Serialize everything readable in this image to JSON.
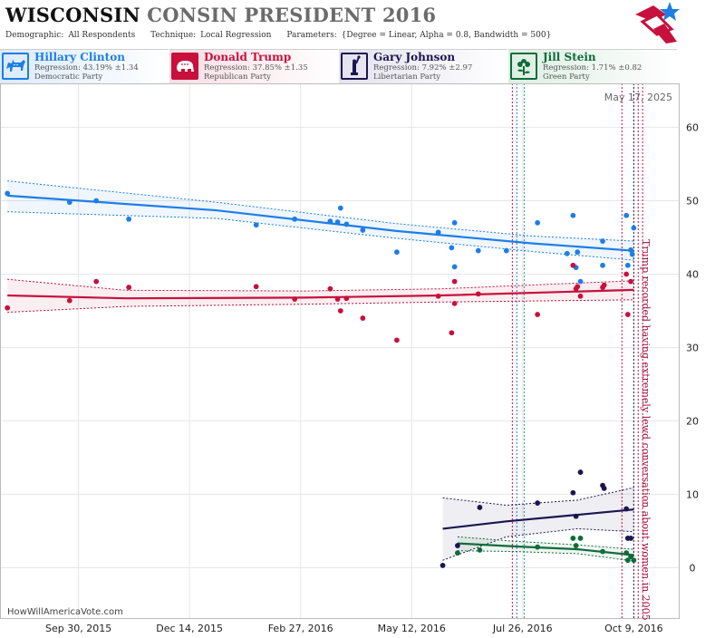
{
  "header": {
    "title_state": "WISCONSIN",
    "title_rest": "CONSIN PRESIDENT 2016",
    "demographic_label": "Demographic:",
    "demographic_value": "All Respondents",
    "technique_label": "Technique:",
    "technique_value": "Local Regression",
    "parameters_label": "Parameters:",
    "parameters_value": "{Degree = Linear, Alpha = 0.8, Bandwidth = 500}"
  },
  "candidates": [
    {
      "name": "Hillary Clinton",
      "regression": "Regression: 43.19% ±1.34",
      "party": "Democratic Party",
      "color": "#1c7ee6",
      "icon": "donkey-icon"
    },
    {
      "name": "Donald Trump",
      "regression": "Regression: 37.85% ±1.35",
      "party": "Republican Party",
      "color": "#c8103d",
      "icon": "elephant-icon"
    },
    {
      "name": "Gary Johnson",
      "regression": "Regression: 7.92% ±2.97",
      "party": "Libertarian Party",
      "color": "#1b1550",
      "icon": "liberty-statue-icon"
    },
    {
      "name": "Jill Stein",
      "regression": "Regression: 1.71% ±0.82",
      "party": "Green Party",
      "color": "#0f6b3a",
      "icon": "flower-icon"
    }
  ],
  "chart_data": {
    "type": "scatter",
    "date_label": "May 17, 2025",
    "footer": "HowWillAmericaVote.com",
    "x_tick_labels": [
      "Sep 30, 2015",
      "Dec 14, 2015",
      "Feb 27, 2016",
      "May 12, 2016",
      "Jul 26, 2016",
      "Oct 9, 2016"
    ],
    "y_ticks": [
      0,
      10,
      20,
      30,
      40,
      50,
      60
    ],
    "xlim": [
      "2015-08-08",
      "2016-11-09"
    ],
    "ylim": [
      -7,
      66
    ],
    "annotation": "Trump recorded having extremely lewd conversation about women in 2005",
    "event_lines": [
      {
        "date": "2016-07-19",
        "color": "#c8103d"
      },
      {
        "date": "2016-07-22",
        "color": "#1c7ee6"
      },
      {
        "date": "2016-07-27",
        "color": "#2aa0a0"
      },
      {
        "date": "2016-10-01",
        "color": "#c8103d"
      },
      {
        "date": "2016-10-09",
        "color": "#1b1550"
      },
      {
        "date": "2016-10-12",
        "color": "#c8103d"
      },
      {
        "date": "2016-10-15",
        "color": "#c8103d"
      }
    ],
    "series": [
      {
        "name": "Hillary Clinton",
        "color": "#1c7ee6",
        "points": [
          [
            "2015-08-13",
            51
          ],
          [
            "2015-09-24",
            49.8
          ],
          [
            "2015-10-12",
            50
          ],
          [
            "2015-11-03",
            47.5
          ],
          [
            "2016-01-28",
            46.7
          ],
          [
            "2016-02-23",
            47.5
          ],
          [
            "2016-03-18",
            47.2
          ],
          [
            "2016-03-23",
            47.1
          ],
          [
            "2016-03-25",
            49
          ],
          [
            "2016-03-29",
            46.8
          ],
          [
            "2016-04-09",
            46
          ],
          [
            "2016-05-02",
            43
          ],
          [
            "2016-05-30",
            45.7
          ],
          [
            "2016-06-08",
            43.6
          ],
          [
            "2016-06-10",
            47
          ],
          [
            "2016-06-10",
            41
          ],
          [
            "2016-06-26",
            43.2
          ],
          [
            "2016-07-15",
            43.2
          ],
          [
            "2016-08-05",
            47
          ],
          [
            "2016-08-25",
            42.8
          ],
          [
            "2016-08-29",
            48
          ],
          [
            "2016-08-31",
            40.9
          ],
          [
            "2016-09-01",
            43
          ],
          [
            "2016-09-03",
            39
          ],
          [
            "2016-09-18",
            44.5
          ],
          [
            "2016-09-18",
            41.2
          ],
          [
            "2016-10-04",
            48
          ],
          [
            "2016-10-05",
            41.2
          ],
          [
            "2016-10-07",
            43.3
          ],
          [
            "2016-10-08",
            42.7
          ],
          [
            "2016-10-09",
            46.3
          ]
        ],
        "regression": [
          [
            "2015-08-13",
            50.7
          ],
          [
            "2016-01-01",
            48.7
          ],
          [
            "2016-05-01",
            45.9
          ],
          [
            "2016-08-01",
            44.2
          ],
          [
            "2016-10-09",
            43.19
          ]
        ],
        "band": [
          [
            "2015-08-13",
            52.7,
            48.5
          ],
          [
            "2016-01-01",
            49.8,
            47.6
          ],
          [
            "2016-05-01",
            46.9,
            44.9
          ],
          [
            "2016-08-01",
            45.2,
            43.1
          ],
          [
            "2016-10-09",
            44.5,
            41.9
          ]
        ]
      },
      {
        "name": "Donald Trump",
        "color": "#c8103d",
        "points": [
          [
            "2015-08-13",
            35.4
          ],
          [
            "2015-09-24",
            36.4
          ],
          [
            "2015-10-12",
            39
          ],
          [
            "2015-11-03",
            38.2
          ],
          [
            "2016-01-28",
            38.3
          ],
          [
            "2016-02-23",
            36.6
          ],
          [
            "2016-03-18",
            38
          ],
          [
            "2016-03-23",
            36.6
          ],
          [
            "2016-03-25",
            35
          ],
          [
            "2016-03-29",
            36.7
          ],
          [
            "2016-04-09",
            34
          ],
          [
            "2016-05-02",
            31
          ],
          [
            "2016-05-30",
            37
          ],
          [
            "2016-06-08",
            32
          ],
          [
            "2016-06-10",
            39
          ],
          [
            "2016-06-10",
            36
          ],
          [
            "2016-06-26",
            37.3
          ],
          [
            "2016-08-05",
            34.5
          ],
          [
            "2016-08-29",
            41.2
          ],
          [
            "2016-08-31",
            38
          ],
          [
            "2016-09-01",
            38.3
          ],
          [
            "2016-09-03",
            37
          ],
          [
            "2016-09-18",
            38.2
          ],
          [
            "2016-09-19",
            38.5
          ],
          [
            "2016-10-04",
            40
          ],
          [
            "2016-10-05",
            34.5
          ],
          [
            "2016-10-07",
            39
          ]
        ],
        "regression": [
          [
            "2015-08-13",
            37.1
          ],
          [
            "2015-11-01",
            36.7
          ],
          [
            "2016-03-01",
            36.8
          ],
          [
            "2016-06-01",
            37.1
          ],
          [
            "2016-10-09",
            37.85
          ]
        ],
        "band": [
          [
            "2015-08-13",
            39.3,
            34.8
          ],
          [
            "2015-11-01",
            37.8,
            35.6
          ],
          [
            "2016-03-01",
            37.7,
            35.9
          ],
          [
            "2016-06-01",
            38.0,
            36.2
          ],
          [
            "2016-10-09",
            39.1,
            36.5
          ]
        ]
      },
      {
        "name": "Gary Johnson",
        "color": "#1b1550",
        "points": [
          [
            "2016-06-02",
            0.3
          ],
          [
            "2016-06-12",
            3
          ],
          [
            "2016-06-27",
            8.2
          ],
          [
            "2016-08-05",
            8.8
          ],
          [
            "2016-08-29",
            10.2
          ],
          [
            "2016-08-31",
            7
          ],
          [
            "2016-09-03",
            13
          ],
          [
            "2016-09-18",
            11.2
          ],
          [
            "2016-09-19",
            10.8
          ],
          [
            "2016-10-04",
            8
          ],
          [
            "2016-10-05",
            4
          ],
          [
            "2016-10-07",
            4
          ]
        ],
        "regression": [
          [
            "2016-06-02",
            5.3
          ],
          [
            "2016-07-15",
            6.3
          ],
          [
            "2016-09-01",
            7.2
          ],
          [
            "2016-10-09",
            7.92
          ]
        ],
        "band": [
          [
            "2016-06-02",
            9.5,
            1.0
          ],
          [
            "2016-07-15",
            8.5,
            4.2
          ],
          [
            "2016-09-01",
            9.2,
            5.3
          ],
          [
            "2016-10-09",
            10.9,
            4.9
          ]
        ]
      },
      {
        "name": "Jill Stein",
        "color": "#0f6b3a",
        "points": [
          [
            "2016-06-12",
            2
          ],
          [
            "2016-06-27",
            2.4
          ],
          [
            "2016-08-05",
            2.8
          ],
          [
            "2016-08-29",
            4
          ],
          [
            "2016-08-31",
            3
          ],
          [
            "2016-09-03",
            4
          ],
          [
            "2016-09-18",
            2.2
          ],
          [
            "2016-10-04",
            2
          ],
          [
            "2016-10-05",
            1
          ],
          [
            "2016-10-07",
            1.5
          ],
          [
            "2016-10-09",
            1
          ]
        ],
        "regression": [
          [
            "2016-06-12",
            3.3
          ],
          [
            "2016-07-20",
            2.9
          ],
          [
            "2016-09-01",
            2.5
          ],
          [
            "2016-10-09",
            1.71
          ]
        ],
        "band": [
          [
            "2016-06-12",
            4.2,
            2.3
          ],
          [
            "2016-07-20",
            3.6,
            2.2
          ],
          [
            "2016-09-01",
            3.1,
            1.9
          ],
          [
            "2016-10-09",
            2.5,
            0.9
          ]
        ]
      }
    ]
  }
}
